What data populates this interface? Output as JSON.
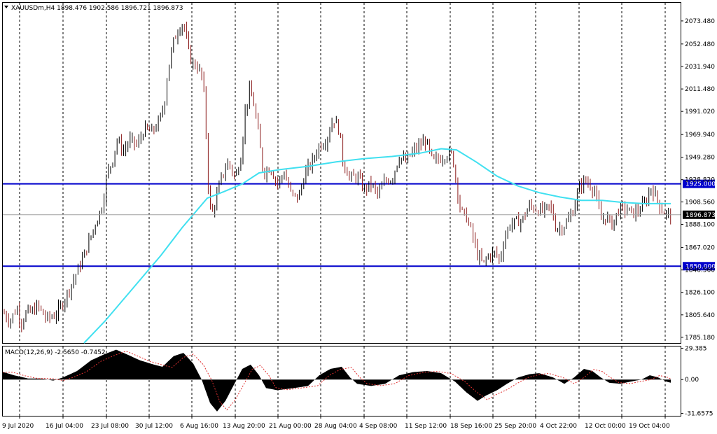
{
  "chart_data": {
    "type": "candlestick",
    "symbol_line": "XAUUSDm,H4  1898.476 1902.586 1896.721 1896.873",
    "main": {
      "ylim": [
        1780,
        2090
      ],
      "y_ticks": [
        "2073.480",
        "2052.480",
        "2031.940",
        "2011.480",
        "1991.020",
        "1969.940",
        "1949.280",
        "1928.820",
        "1908.560",
        "1888.100",
        "1867.020",
        "1846.560",
        "1826.100",
        "1805.640",
        "1785.180"
      ],
      "horizontal_levels": [
        {
          "value": 1925.0,
          "label": "1925.000",
          "color": "#0000cc"
        },
        {
          "value": 1850.0,
          "label": "1850.000",
          "color": "#0000cc"
        }
      ],
      "current_price": {
        "value": 1896.873,
        "label": "1896.873"
      },
      "ma_color": "#40e0f0",
      "bull_color": "#000000",
      "bear_color": "#8b1a1a"
    },
    "macd": {
      "title": "MACD(12,26,9) -2.5650 -0.7452",
      "ylim": [
        -34,
        31
      ],
      "y_ticks": [
        "29.385",
        "0.00",
        "-31.6575"
      ],
      "histogram_color": "#000000",
      "signal_color": "#e03030"
    },
    "x_labels": [
      "9 Jul 2020",
      "16 Jul 04:00",
      "23 Jul 08:00",
      "30 Jul 12:00",
      "6 Aug 16:00",
      "13 Aug 20:00",
      "21 Aug 00:00",
      "28 Aug 04:00",
      "4 Sep 08:00",
      "11 Sep 12:00",
      "18 Sep 16:00",
      "25 Sep 20:00",
      "4 Oct 22:00",
      "12 Oct 00:00",
      "19 Oct 04:00"
    ],
    "price_path": [
      [
        0,
        1812
      ],
      [
        14,
        1800
      ],
      [
        24,
        1812
      ],
      [
        30,
        1798
      ],
      [
        38,
        1808
      ],
      [
        45,
        1808
      ],
      [
        54,
        1814
      ],
      [
        66,
        1802
      ],
      [
        78,
        1805
      ],
      [
        88,
        1814
      ],
      [
        96,
        1825
      ],
      [
        110,
        1845
      ],
      [
        120,
        1860
      ],
      [
        134,
        1885
      ],
      [
        146,
        1905
      ],
      [
        153,
        1935
      ],
      [
        160,
        1945
      ],
      [
        167,
        1965
      ],
      [
        176,
        1955
      ],
      [
        186,
        1965
      ],
      [
        196,
        1960
      ],
      [
        206,
        1975
      ],
      [
        216,
        1972
      ],
      [
        226,
        1980
      ],
      [
        234,
        1995
      ],
      [
        240,
        2030
      ],
      [
        248,
        2055
      ],
      [
        256,
        2068
      ],
      [
        262,
        2072
      ],
      [
        268,
        2050
      ],
      [
        274,
        2035
      ],
      [
        282,
        2032
      ],
      [
        290,
        2020
      ],
      [
        294,
        1975
      ],
      [
        298,
        1915
      ],
      [
        302,
        1895
      ],
      [
        308,
        1910
      ],
      [
        316,
        1930
      ],
      [
        326,
        1945
      ],
      [
        336,
        1930
      ],
      [
        344,
        1950
      ],
      [
        350,
        1990
      ],
      [
        356,
        2010
      ],
      [
        362,
        2000
      ],
      [
        368,
        1975
      ],
      [
        376,
        1935
      ],
      [
        386,
        1940
      ],
      [
        396,
        1925
      ],
      [
        406,
        1935
      ],
      [
        416,
        1915
      ],
      [
        426,
        1912
      ],
      [
        436,
        1935
      ],
      [
        446,
        1945
      ],
      [
        456,
        1960
      ],
      [
        466,
        1965
      ],
      [
        476,
        1985
      ],
      [
        484,
        1975
      ],
      [
        490,
        1945
      ],
      [
        500,
        1930
      ],
      [
        510,
        1932
      ],
      [
        520,
        1920
      ],
      [
        530,
        1925
      ],
      [
        540,
        1915
      ],
      [
        550,
        1928
      ],
      [
        560,
        1930
      ],
      [
        570,
        1950
      ],
      [
        580,
        1945
      ],
      [
        590,
        1955
      ],
      [
        600,
        1960
      ],
      [
        608,
        1965
      ],
      [
        618,
        1945
      ],
      [
        628,
        1948
      ],
      [
        638,
        1952
      ],
      [
        646,
        1952
      ],
      [
        652,
        1925
      ],
      [
        658,
        1900
      ],
      [
        666,
        1895
      ],
      [
        674,
        1880
      ],
      [
        682,
        1860
      ],
      [
        690,
        1852
      ],
      [
        698,
        1860
      ],
      [
        708,
        1862
      ],
      [
        714,
        1855
      ],
      [
        720,
        1875
      ],
      [
        728,
        1888
      ],
      [
        736,
        1890
      ],
      [
        746,
        1892
      ],
      [
        756,
        1905
      ],
      [
        766,
        1902
      ],
      [
        776,
        1900
      ],
      [
        786,
        1905
      ],
      [
        794,
        1885
      ],
      [
        802,
        1885
      ],
      [
        810,
        1890
      ],
      [
        818,
        1900
      ],
      [
        826,
        1920
      ],
      [
        834,
        1928
      ],
      [
        842,
        1925
      ],
      [
        850,
        1918
      ],
      [
        858,
        1892
      ],
      [
        866,
        1895
      ],
      [
        874,
        1888
      ],
      [
        884,
        1902
      ],
      [
        894,
        1902
      ],
      [
        904,
        1898
      ],
      [
        914,
        1902
      ],
      [
        922,
        1908
      ],
      [
        930,
        1922
      ],
      [
        938,
        1912
      ],
      [
        946,
        1900
      ],
      [
        954,
        1897
      ],
      [
        958,
        1897
      ]
    ],
    "ma_path": [
      [
        120,
        1780
      ],
      [
        150,
        1800
      ],
      [
        190,
        1830
      ],
      [
        230,
        1860
      ],
      [
        260,
        1885
      ],
      [
        280,
        1900
      ],
      [
        296,
        1912
      ],
      [
        320,
        1918
      ],
      [
        346,
        1925
      ],
      [
        370,
        1935
      ],
      [
        400,
        1938
      ],
      [
        440,
        1941
      ],
      [
        480,
        1945
      ],
      [
        520,
        1948
      ],
      [
        560,
        1950
      ],
      [
        600,
        1953
      ],
      [
        630,
        1957
      ],
      [
        652,
        1956
      ],
      [
        680,
        1945
      ],
      [
        710,
        1932
      ],
      [
        740,
        1923
      ],
      [
        770,
        1917
      ],
      [
        800,
        1913
      ],
      [
        830,
        1910
      ],
      [
        860,
        1910
      ],
      [
        890,
        1908
      ],
      [
        920,
        1907
      ],
      [
        958,
        1907
      ]
    ],
    "macd_hist_path": [
      [
        0,
        8
      ],
      [
        20,
        4
      ],
      [
        40,
        1
      ],
      [
        60,
        1
      ],
      [
        76,
        -1
      ],
      [
        90,
        2
      ],
      [
        110,
        8
      ],
      [
        130,
        18
      ],
      [
        150,
        24
      ],
      [
        166,
        28
      ],
      [
        180,
        24
      ],
      [
        200,
        18
      ],
      [
        220,
        14
      ],
      [
        232,
        12
      ],
      [
        248,
        22
      ],
      [
        262,
        25
      ],
      [
        276,
        15
      ],
      [
        288,
        0
      ],
      [
        300,
        -22
      ],
      [
        310,
        -30
      ],
      [
        322,
        -20
      ],
      [
        334,
        -5
      ],
      [
        346,
        10
      ],
      [
        358,
        14
      ],
      [
        370,
        4
      ],
      [
        380,
        -8
      ],
      [
        396,
        -10
      ],
      [
        420,
        -8
      ],
      [
        440,
        -6
      ],
      [
        456,
        4
      ],
      [
        472,
        10
      ],
      [
        488,
        12
      ],
      [
        500,
        2
      ],
      [
        510,
        -4
      ],
      [
        530,
        -6
      ],
      [
        550,
        -4
      ],
      [
        570,
        4
      ],
      [
        590,
        7
      ],
      [
        610,
        8
      ],
      [
        630,
        6
      ],
      [
        650,
        -2
      ],
      [
        666,
        -12
      ],
      [
        682,
        -20
      ],
      [
        694,
        -15
      ],
      [
        710,
        -10
      ],
      [
        724,
        -4
      ],
      [
        740,
        2
      ],
      [
        756,
        5
      ],
      [
        770,
        6
      ],
      [
        790,
        2
      ],
      [
        806,
        -4
      ],
      [
        820,
        2
      ],
      [
        834,
        10
      ],
      [
        846,
        8
      ],
      [
        858,
        2
      ],
      [
        870,
        -3
      ],
      [
        886,
        -4
      ],
      [
        900,
        -2
      ],
      [
        916,
        0
      ],
      [
        928,
        4
      ],
      [
        940,
        2
      ],
      [
        952,
        -2
      ],
      [
        958,
        -3
      ]
    ]
  }
}
